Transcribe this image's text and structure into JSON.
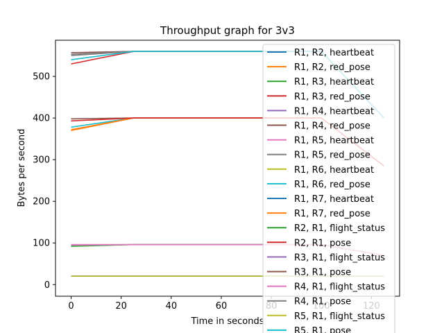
{
  "chart_data": {
    "type": "line",
    "title": "Throughput graph for 3v3",
    "xlabel": "Time in seconds",
    "ylabel": "Bytes per second",
    "xlim": [
      -6.25,
      131.25
    ],
    "ylim": [
      -27.9,
      586.8
    ],
    "xticks": [
      0,
      20,
      40,
      60,
      80,
      100,
      120
    ],
    "yticks": [
      0,
      100,
      200,
      300,
      400,
      500
    ],
    "x": [
      0,
      25,
      50,
      75,
      100,
      125
    ],
    "legend_position": "upper right",
    "series": [
      {
        "name": "R1, R2, heartbeat",
        "color": "#1f77b4",
        "values": [
          20,
          20,
          20,
          20,
          20,
          20
        ]
      },
      {
        "name": "R1, R2, red_pose",
        "color": "#ff7f0e",
        "values": [
          370,
          400,
          400,
          400,
          400,
          285
        ]
      },
      {
        "name": "R1, R3, heartbeat",
        "color": "#2ca02c",
        "values": [
          93,
          96,
          96,
          96,
          96,
          70
        ]
      },
      {
        "name": "R1, R3, red_pose",
        "color": "#d62728",
        "values": [
          530,
          560,
          560,
          560,
          560,
          400
        ]
      },
      {
        "name": "R1, R4, heartbeat",
        "color": "#9467bd",
        "values": [
          20,
          20,
          20,
          20,
          20,
          20
        ]
      },
      {
        "name": "R1, R4, red_pose",
        "color": "#8c564b",
        "values": [
          398,
          400,
          400,
          400,
          400,
          285
        ]
      },
      {
        "name": "R1, R5, heartbeat",
        "color": "#e377c2",
        "values": [
          96,
          96,
          96,
          96,
          96,
          70
        ]
      },
      {
        "name": "R1, R5, red_pose",
        "color": "#7f7f7f",
        "values": [
          550,
          560,
          560,
          560,
          560,
          400
        ]
      },
      {
        "name": "R1, R6, heartbeat",
        "color": "#bcbd22",
        "values": [
          20,
          20,
          20,
          20,
          20,
          20
        ]
      },
      {
        "name": "R1, R6, red_pose",
        "color": "#17becf",
        "values": [
          378,
          400,
          400,
          400,
          400,
          285
        ]
      },
      {
        "name": "R1, R7, heartbeat",
        "color": "#1f77b4",
        "values": [
          20,
          20,
          20,
          20,
          20,
          20
        ]
      },
      {
        "name": "R1, R7, red_pose",
        "color": "#ff7f0e",
        "values": [
          372,
          400,
          400,
          400,
          400,
          285
        ]
      },
      {
        "name": "R2, R1, flight_status",
        "color": "#2ca02c",
        "values": [
          92,
          96,
          96,
          96,
          96,
          70
        ]
      },
      {
        "name": "R2, R1, pose",
        "color": "#d62728",
        "values": [
          393,
          400,
          400,
          400,
          400,
          285
        ]
      },
      {
        "name": "R3, R1, flight_status",
        "color": "#9467bd",
        "values": [
          20,
          20,
          20,
          20,
          20,
          20
        ]
      },
      {
        "name": "R3, R1, pose",
        "color": "#8c564b",
        "values": [
          557,
          560,
          560,
          560,
          560,
          400
        ]
      },
      {
        "name": "R4, R1, flight_status",
        "color": "#e377c2",
        "values": [
          95,
          96,
          96,
          96,
          96,
          70
        ]
      },
      {
        "name": "R4, R1, pose",
        "color": "#7f7f7f",
        "values": [
          553,
          560,
          560,
          560,
          560,
          400
        ]
      },
      {
        "name": "R5, R1, flight_status",
        "color": "#bcbd22",
        "values": [
          20,
          20,
          20,
          20,
          20,
          20
        ]
      },
      {
        "name": "R5, R1, pose",
        "color": "#17becf",
        "values": [
          540,
          560,
          560,
          560,
          560,
          400
        ]
      }
    ]
  }
}
